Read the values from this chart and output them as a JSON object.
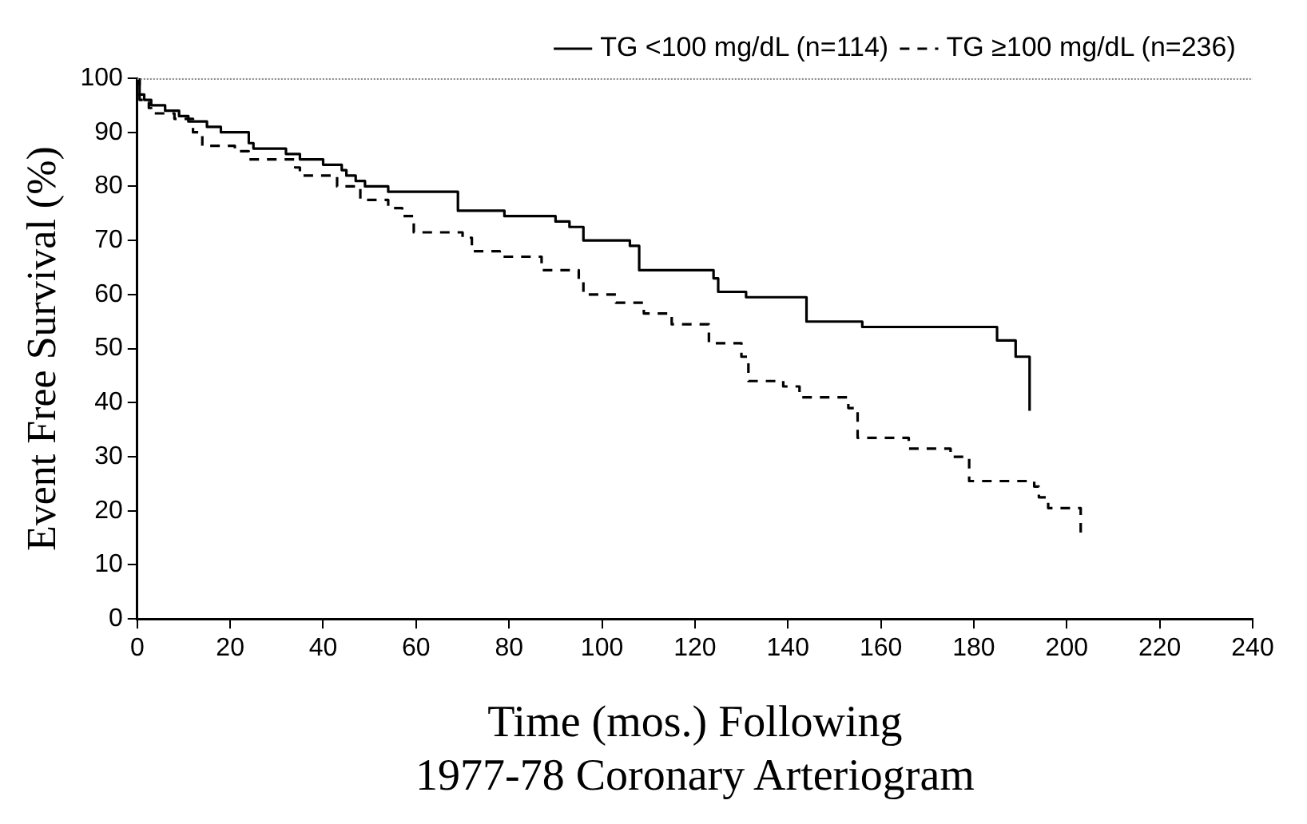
{
  "chart_data": {
    "type": "step",
    "xlabel": "Time (mos.) Following\n1977-78 Coronary Arteriogram",
    "ylabel": "Event Free Survival (%)",
    "xlim": [
      0,
      240
    ],
    "xticks": [
      0,
      20,
      40,
      60,
      80,
      100,
      120,
      140,
      160,
      180,
      200,
      220,
      240
    ],
    "ylim": [
      0,
      100
    ],
    "yticks": [
      0,
      10,
      20,
      30,
      40,
      50,
      60,
      70,
      80,
      90,
      100
    ],
    "grid": false,
    "legend": "top right",
    "marker": "none",
    "series": [
      {
        "name": "TG <100 mg/dL (n=114)",
        "color": "#000000",
        "line_style": "solid",
        "x": [
          0,
          0.5,
          1.5,
          3,
          6,
          9,
          11,
          15,
          18,
          24,
          25,
          32,
          35,
          40,
          44,
          45,
          47,
          49,
          54,
          69,
          79,
          90,
          93,
          96,
          106,
          108,
          124,
          125,
          131,
          144,
          156,
          185,
          189,
          192
        ],
        "values": [
          100,
          97,
          96,
          95,
          94,
          93,
          92,
          91,
          90,
          88,
          87,
          86,
          85,
          84,
          83,
          82,
          81,
          80,
          79,
          75.5,
          74.5,
          73.5,
          72.5,
          70,
          69,
          64.5,
          63,
          60.5,
          59.5,
          55,
          54,
          51.5,
          48.5,
          38.5
        ]
      },
      {
        "name": "TG ≥100 mg/dL (n=236)",
        "color": "#000000",
        "line_style": "dashed",
        "x": [
          0,
          0.5,
          1.5,
          2.5,
          3,
          8,
          12,
          14,
          21,
          24,
          34,
          35,
          43,
          48,
          54,
          57,
          59.5,
          70,
          72,
          78,
          87,
          95,
          96,
          103,
          109,
          115,
          123,
          130,
          131.5,
          139,
          142.5,
          153,
          155,
          166,
          175,
          179,
          193,
          194,
          196,
          203
        ],
        "values": [
          100,
          96,
          95.5,
          94.5,
          93.5,
          92.5,
          90,
          87.5,
          86.5,
          85,
          83.5,
          82,
          80,
          77.5,
          76,
          74.5,
          71.5,
          70.5,
          68,
          67,
          64.5,
          62.5,
          60,
          58.5,
          56.5,
          54.5,
          51,
          48.5,
          44,
          43,
          41,
          39,
          33.5,
          31.5,
          30,
          25.5,
          24.5,
          22.5,
          20.5,
          15.5
        ]
      }
    ]
  }
}
